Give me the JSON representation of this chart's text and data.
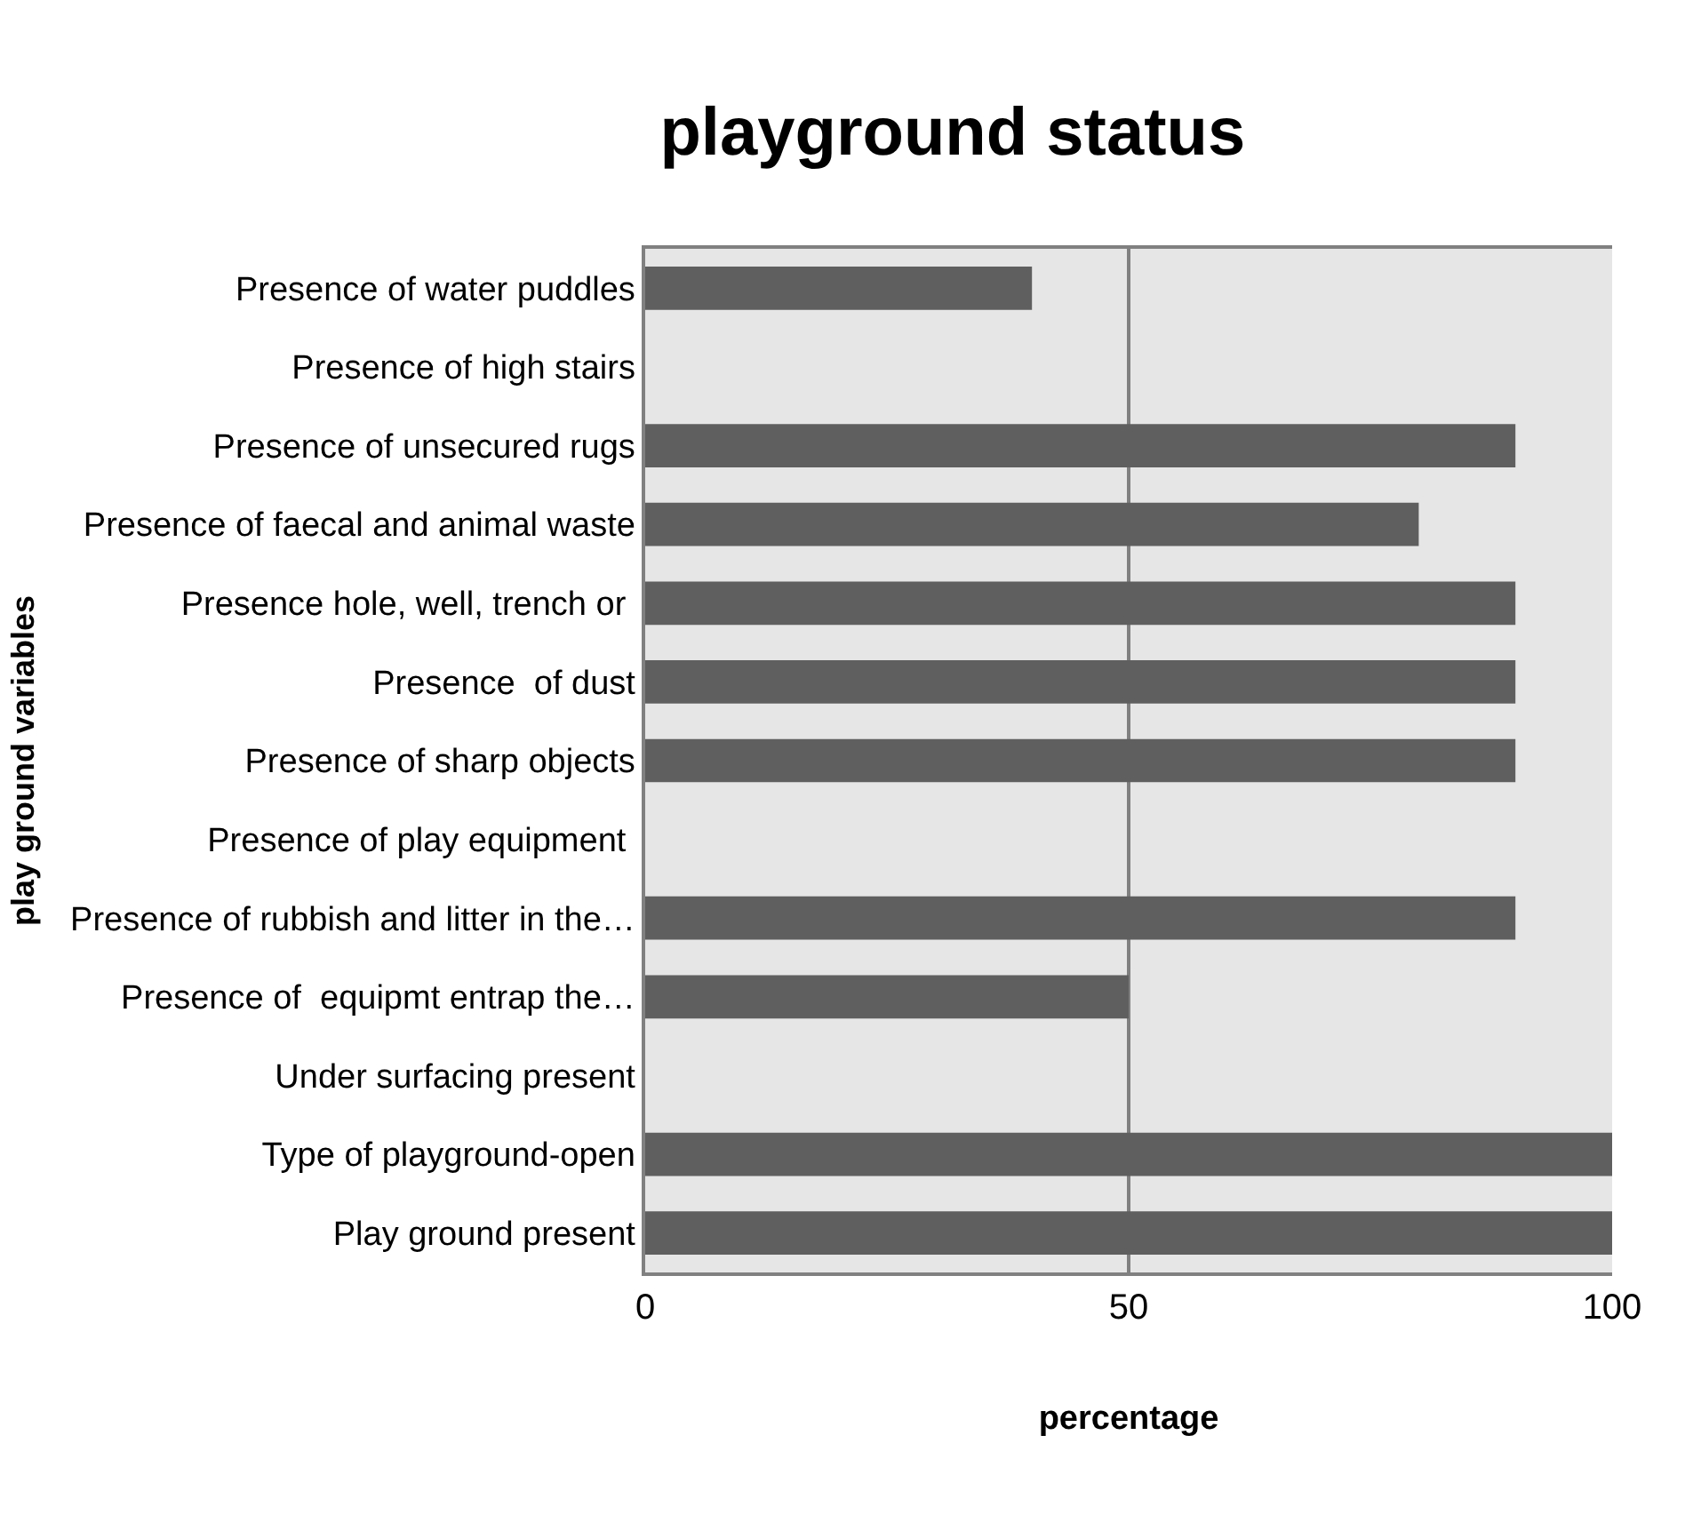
{
  "chart_data": {
    "type": "bar",
    "orientation": "horizontal",
    "title": "playground status",
    "xlabel": "percentage",
    "ylabel": "play ground variables",
    "categories": [
      "Presence of water puddles",
      "Presence of high stairs",
      "Presence of unsecured rugs",
      "Presence of faecal and animal waste",
      "Presence hole, well, trench or ",
      "Presence  of dust",
      "Presence of sharp objects",
      "Presence of play equipment ",
      "Presence of rubbish and litter in the…",
      "Presence of  equipmt entrap the…",
      "Under surfacing present",
      "Type of playground-open",
      "Play ground present"
    ],
    "values": [
      40,
      0,
      90,
      80,
      90,
      90,
      90,
      0,
      90,
      50,
      0,
      100,
      100
    ],
    "color": "#5f5f5f",
    "xlim": [
      0,
      100
    ],
    "xticks": [
      0,
      50,
      100
    ],
    "grid": "x"
  }
}
